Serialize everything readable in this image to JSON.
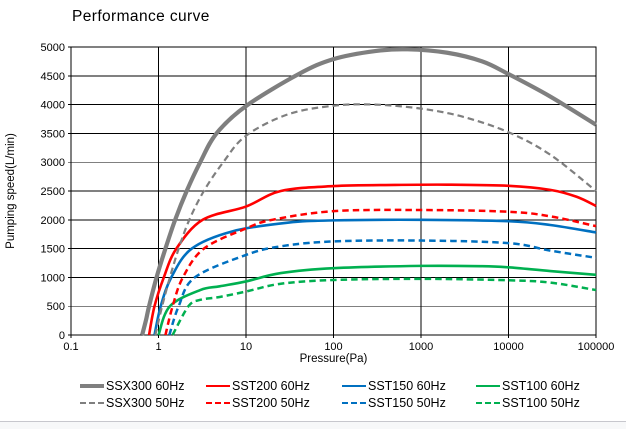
{
  "window": {
    "background_color": "#ffffff",
    "bottom_divider_color": "#c7c7cd",
    "bottom_strip_color": "#f7f8f9"
  },
  "chart_data": {
    "type": "line",
    "title": "Performance curve",
    "xlabel": "Pressure(Pa)",
    "ylabel": "Pumping speed(L/min)",
    "x_scale": "log",
    "xlim": [
      0.1,
      100000
    ],
    "ylim": [
      0,
      5000
    ],
    "x_ticks": [
      0.1,
      1,
      10,
      100,
      1000,
      10000,
      100000
    ],
    "x_tick_labels": [
      "0.1",
      "1",
      "10",
      "100",
      "1000",
      "10000",
      "100000"
    ],
    "y_tick_step": 500,
    "y_tick_labels": [
      "0",
      "500",
      "1000",
      "1500",
      "2000",
      "2500",
      "3000",
      "3500",
      "4000",
      "4500",
      "5000"
    ],
    "grid": true,
    "grid_color": "#000000",
    "axis_color": "#000000",
    "legend_position": "bottom",
    "series": [
      {
        "name": "SSX300 60Hz",
        "model": "SSX300",
        "frequency": "60Hz",
        "color": "#7F7F7F",
        "style": "solid",
        "width": 4.2,
        "points": [
          [
            0.65,
            0
          ],
          [
            0.72,
            260
          ],
          [
            0.78,
            500
          ],
          [
            0.95,
            1000
          ],
          [
            1.2,
            1500
          ],
          [
            1.55,
            2000
          ],
          [
            2.1,
            2500
          ],
          [
            3.0,
            3000
          ],
          [
            4.6,
            3500
          ],
          [
            10,
            3975
          ],
          [
            40,
            4530
          ],
          [
            100,
            4790
          ],
          [
            300,
            4930
          ],
          [
            700,
            4960
          ],
          [
            2000,
            4900
          ],
          [
            5000,
            4750
          ],
          [
            10000,
            4530
          ],
          [
            30000,
            4140
          ],
          [
            100000,
            3650
          ]
        ]
      },
      {
        "name": "SST200 60Hz",
        "model": "SST200",
        "frequency": "60Hz",
        "color": "#FF0000",
        "style": "solid",
        "width": 2.6,
        "points": [
          [
            0.78,
            0
          ],
          [
            0.9,
            500
          ],
          [
            1.15,
            1000
          ],
          [
            1.6,
            1500
          ],
          [
            3.2,
            2000
          ],
          [
            10,
            2230
          ],
          [
            25,
            2500
          ],
          [
            100,
            2585
          ],
          [
            500,
            2605
          ],
          [
            2000,
            2610
          ],
          [
            10000,
            2590
          ],
          [
            30000,
            2520
          ],
          [
            60000,
            2400
          ],
          [
            100000,
            2240
          ]
        ]
      },
      {
        "name": "SST150 60Hz",
        "model": "SST150",
        "frequency": "60Hz",
        "color": "#0070C0",
        "style": "solid",
        "width": 2.6,
        "points": [
          [
            0.9,
            0
          ],
          [
            1.06,
            500
          ],
          [
            1.4,
            1000
          ],
          [
            2.4,
            1500
          ],
          [
            7,
            1800
          ],
          [
            30,
            1950
          ],
          [
            100,
            1990
          ],
          [
            1000,
            2000
          ],
          [
            10000,
            1975
          ],
          [
            30000,
            1910
          ],
          [
            100000,
            1780
          ]
        ]
      },
      {
        "name": "SST100 60Hz",
        "model": "SST100",
        "frequency": "60Hz",
        "color": "#00B050",
        "style": "solid",
        "width": 2.6,
        "points": [
          [
            1.0,
            0
          ],
          [
            1.35,
            500
          ],
          [
            3,
            780
          ],
          [
            5,
            845
          ],
          [
            10,
            930
          ],
          [
            25,
            1075
          ],
          [
            100,
            1160
          ],
          [
            1000,
            1200
          ],
          [
            5000,
            1195
          ],
          [
            10000,
            1175
          ],
          [
            30000,
            1110
          ],
          [
            100000,
            1045
          ]
        ]
      },
      {
        "name": "SSX300 50Hz",
        "model": "SSX300",
        "frequency": "50Hz",
        "color": "#7F7F7F",
        "style": "dashed",
        "width": 2.2,
        "points": [
          [
            0.92,
            0
          ],
          [
            1.1,
            500
          ],
          [
            1.35,
            1000
          ],
          [
            1.7,
            1500
          ],
          [
            2.25,
            2000
          ],
          [
            3.3,
            2500
          ],
          [
            5.5,
            3000
          ],
          [
            10,
            3460
          ],
          [
            30,
            3830
          ],
          [
            100,
            3980
          ],
          [
            300,
            4000
          ],
          [
            1000,
            3930
          ],
          [
            3000,
            3790
          ],
          [
            10000,
            3520
          ],
          [
            30000,
            3130
          ],
          [
            100000,
            2500
          ]
        ]
      },
      {
        "name": "SST200 50Hz",
        "model": "SST200",
        "frequency": "50Hz",
        "color": "#FF0000",
        "style": "dashed",
        "width": 2.5,
        "points": [
          [
            1.2,
            0
          ],
          [
            1.45,
            500
          ],
          [
            1.9,
            1000
          ],
          [
            3.3,
            1500
          ],
          [
            10,
            1850
          ],
          [
            20,
            2000
          ],
          [
            100,
            2150
          ],
          [
            1000,
            2170
          ],
          [
            10000,
            2140
          ],
          [
            30000,
            2060
          ],
          [
            100000,
            1890
          ]
        ]
      },
      {
        "name": "SST150 50Hz",
        "model": "SST150",
        "frequency": "50Hz",
        "color": "#0070C0",
        "style": "dashed",
        "width": 2.5,
        "points": [
          [
            1.33,
            0
          ],
          [
            1.7,
            500
          ],
          [
            2.6,
            1000
          ],
          [
            10,
            1390
          ],
          [
            25,
            1540
          ],
          [
            100,
            1625
          ],
          [
            1000,
            1640
          ],
          [
            10000,
            1595
          ],
          [
            30000,
            1465
          ],
          [
            100000,
            1340
          ]
        ]
      },
      {
        "name": "SST100 50Hz",
        "model": "SST100",
        "frequency": "50Hz",
        "color": "#00B050",
        "style": "dashed",
        "width": 2.5,
        "points": [
          [
            1.45,
            0
          ],
          [
            2.2,
            500
          ],
          [
            3,
            610
          ],
          [
            5,
            660
          ],
          [
            10,
            755
          ],
          [
            25,
            890
          ],
          [
            100,
            955
          ],
          [
            1000,
            975
          ],
          [
            10000,
            950
          ],
          [
            30000,
            910
          ],
          [
            100000,
            780
          ]
        ]
      }
    ]
  }
}
